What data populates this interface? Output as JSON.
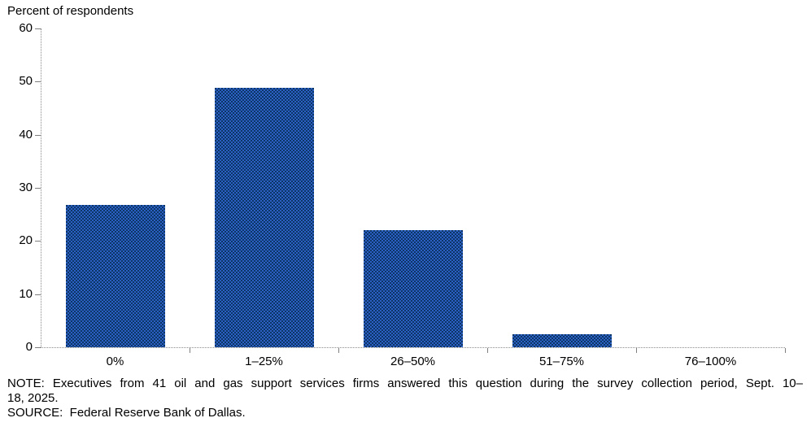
{
  "chart": {
    "axis_title": "Percent of respondents",
    "notes": {
      "line1": "NOTE: Executives from 41 oil and gas support services firms answered this question during the survey collection period, Sept. 10–",
      "line2": "18, 2025.",
      "source": "SOURCE:  Federal Reserve Bank of Dallas."
    }
  },
  "chart_data": {
    "type": "bar",
    "categories": [
      "0%",
      "1–25%",
      "26–50%",
      "51–75%",
      "76–100%"
    ],
    "values": [
      26.8,
      48.8,
      22.0,
      2.4,
      0.0
    ],
    "title": "",
    "xlabel": "",
    "ylabel": "Percent of respondents",
    "ylim": [
      0,
      60
    ],
    "yticks": [
      0,
      10,
      20,
      30,
      40,
      50,
      60
    ],
    "grid": false,
    "legend": false,
    "bar_color_average": "#1c4b95",
    "bar_checker_colors": [
      "#2c5fc4",
      "#0b3666"
    ],
    "axis_color": "#8c8c8c",
    "tick_color": "#7f7f7f",
    "text_color": "#000000"
  }
}
